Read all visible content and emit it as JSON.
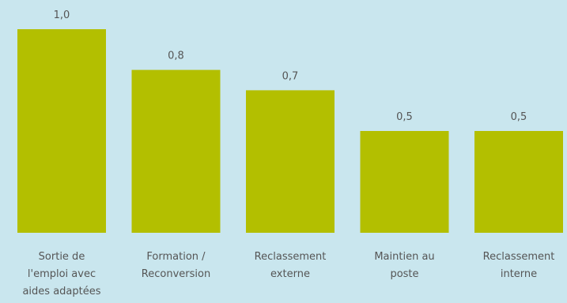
{
  "chart_data": {
    "type": "bar",
    "categories": [
      [
        "Sortie de",
        "l'emploi avec",
        "aides adaptées"
      ],
      [
        "Formation /",
        "Reconversion"
      ],
      [
        "Reclassement",
        "externe"
      ],
      [
        "Maintien au",
        "poste"
      ],
      [
        "Reclassement",
        "interne"
      ]
    ],
    "values": [
      1.0,
      0.8,
      0.7,
      0.5,
      0.5
    ],
    "value_labels": [
      "1,0",
      "0,8",
      "0,7",
      "0,5",
      "0,5"
    ],
    "title": "",
    "xlabel": "",
    "ylabel": "",
    "ylim": [
      0,
      1.0
    ],
    "grid": false,
    "legend": "none",
    "colors": {
      "bar": "#b3bf00",
      "background": "#c9e6ee",
      "text": "#555555"
    }
  }
}
